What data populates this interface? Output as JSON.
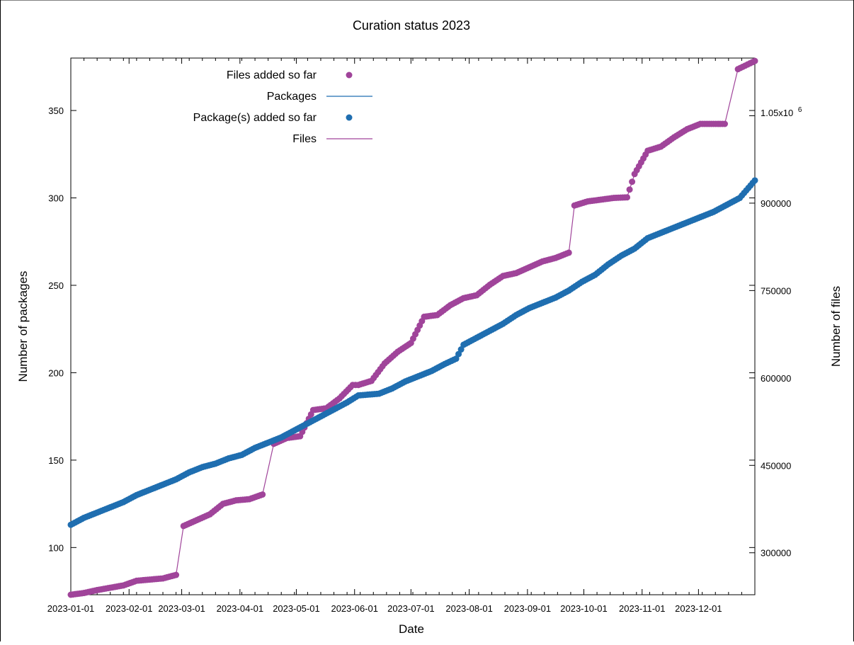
{
  "chart_data": {
    "type": "line",
    "title": "Curation status 2023",
    "xlabel": "Date",
    "ylabel": "Number of packages",
    "y2label": "Number of files",
    "xlim": [
      "2023-01-01",
      "2023-12-31"
    ],
    "ylim": [
      73,
      380
    ],
    "y2lim": [
      228000,
      1149000
    ],
    "x_ticks": [
      "2023-01-01",
      "2023-02-01",
      "2023-03-01",
      "2023-04-01",
      "2023-05-01",
      "2023-06-01",
      "2023-07-01",
      "2023-08-01",
      "2023-09-01",
      "2023-10-01",
      "2023-11-01",
      "2023-12-01"
    ],
    "y_ticks": [
      "100",
      "150",
      "200",
      "250",
      "300",
      "350"
    ],
    "y2_ticks": [
      "300000",
      "450000",
      "600000",
      "750000",
      "900000"
    ],
    "y2_top_tick": {
      "mantissa": "1.05x10",
      "exponent": "6",
      "value": 1050000
    },
    "grid": false,
    "legend_position": "top-left",
    "legend": [
      {
        "label": "Files added so far",
        "kind": "point",
        "color": "#a0449a"
      },
      {
        "label": "Packages",
        "kind": "line",
        "color": "#1f6eb0"
      },
      {
        "label": "Package(s) added so far",
        "kind": "point",
        "color": "#1f6eb0"
      },
      {
        "label": "Files",
        "kind": "line",
        "color": "#a0449a"
      }
    ],
    "series": [
      {
        "name": "Packages",
        "axis": "left",
        "color": "#1f6eb0",
        "x": [
          "2023-01-01",
          "2023-01-08",
          "2023-01-15",
          "2023-01-22",
          "2023-01-29",
          "2023-02-05",
          "2023-02-12",
          "2023-02-19",
          "2023-02-26",
          "2023-03-05",
          "2023-03-12",
          "2023-03-19",
          "2023-03-26",
          "2023-04-02",
          "2023-04-09",
          "2023-04-16",
          "2023-04-23",
          "2023-04-30",
          "2023-05-07",
          "2023-05-14",
          "2023-05-21",
          "2023-05-28",
          "2023-06-03",
          "2023-06-14",
          "2023-06-21",
          "2023-06-28",
          "2023-07-05",
          "2023-07-12",
          "2023-07-19",
          "2023-07-25",
          "2023-07-29",
          "2023-08-05",
          "2023-08-12",
          "2023-08-19",
          "2023-08-26",
          "2023-09-02",
          "2023-09-09",
          "2023-09-16",
          "2023-09-23",
          "2023-09-30",
          "2023-10-07",
          "2023-10-14",
          "2023-10-21",
          "2023-10-28",
          "2023-11-04",
          "2023-11-11",
          "2023-11-18",
          "2023-11-25",
          "2023-12-02",
          "2023-12-09",
          "2023-12-16",
          "2023-12-23",
          "2023-12-31"
        ],
        "values": [
          113,
          117,
          120,
          123,
          126,
          130,
          133,
          136,
          139,
          143,
          146,
          148,
          151,
          153,
          157,
          160,
          163,
          167,
          171,
          175,
          179,
          183,
          187,
          188,
          191,
          195,
          198,
          201,
          205,
          208,
          216,
          220,
          224,
          228,
          233,
          237,
          240,
          243,
          247,
          252,
          256,
          262,
          267,
          271,
          277,
          280,
          283,
          286,
          289,
          292,
          296,
          300,
          310
        ]
      },
      {
        "name": "Files",
        "axis": "right",
        "color": "#a0449a",
        "x": [
          "2023-01-01",
          "2023-01-08",
          "2023-01-15",
          "2023-01-22",
          "2023-01-29",
          "2023-02-05",
          "2023-02-12",
          "2023-02-19",
          "2023-02-26",
          "2023-03-02",
          "2023-03-09",
          "2023-03-16",
          "2023-03-23",
          "2023-03-30",
          "2023-04-06",
          "2023-04-13",
          "2023-04-19",
          "2023-04-26",
          "2023-05-03",
          "2023-05-10",
          "2023-05-17",
          "2023-05-24",
          "2023-05-31",
          "2023-06-03",
          "2023-06-10",
          "2023-06-17",
          "2023-06-24",
          "2023-07-01",
          "2023-07-08",
          "2023-07-15",
          "2023-07-22",
          "2023-07-29",
          "2023-08-05",
          "2023-08-12",
          "2023-08-19",
          "2023-08-26",
          "2023-09-02",
          "2023-09-09",
          "2023-09-16",
          "2023-09-23",
          "2023-09-26",
          "2023-10-03",
          "2023-10-10",
          "2023-10-17",
          "2023-10-24",
          "2023-10-28",
          "2023-11-04",
          "2023-11-11",
          "2023-11-18",
          "2023-11-25",
          "2023-12-02",
          "2023-12-09",
          "2023-12-15",
          "2023-12-22",
          "2023-12-31"
        ],
        "values": [
          228000,
          231000,
          236000,
          240000,
          244000,
          252000,
          254000,
          256000,
          262000,
          346000,
          356000,
          366000,
          384000,
          390000,
          392000,
          400000,
          487000,
          497000,
          500000,
          545000,
          548000,
          565000,
          588000,
          588000,
          595000,
          625000,
          645000,
          660000,
          705000,
          708000,
          725000,
          737000,
          742000,
          760000,
          775000,
          780000,
          790000,
          800000,
          806000,
          815000,
          896000,
          903000,
          906000,
          909000,
          910000,
          950000,
          990000,
          997000,
          1013000,
          1027000,
          1036000,
          1036000,
          1036000,
          1130000,
          1144000
        ]
      }
    ]
  }
}
